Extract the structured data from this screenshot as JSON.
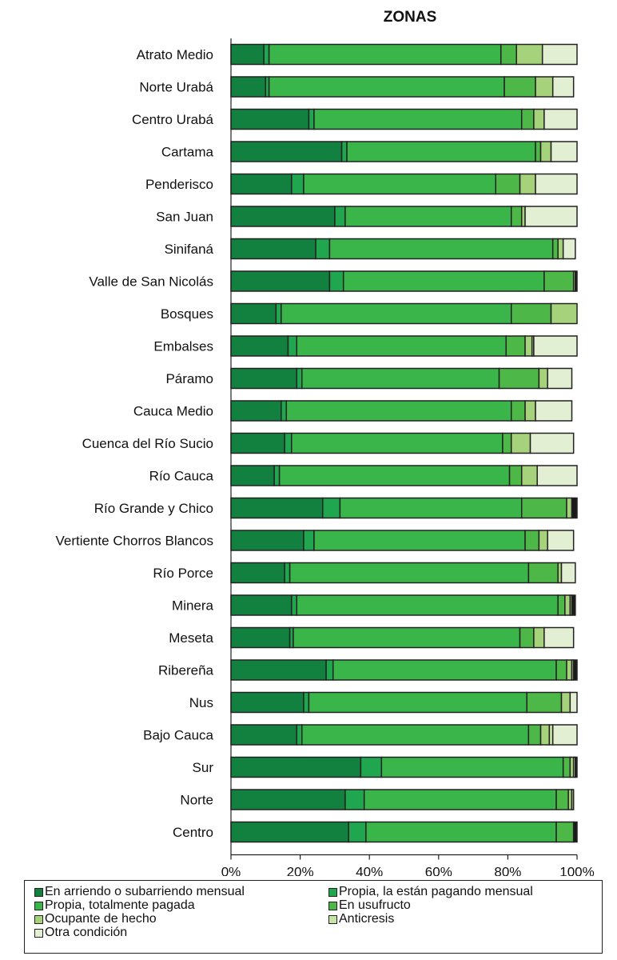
{
  "chart_data": {
    "type": "bar",
    "orientation": "horizontal",
    "stacked": "percent",
    "title": "ZONAS",
    "xlabel": "",
    "ylabel": "",
    "xlim": [
      0,
      100
    ],
    "xticks": [
      "0%",
      "20%",
      "40%",
      "60%",
      "80%",
      "100%"
    ],
    "grid": false,
    "legend_position": "bottom",
    "categories": [
      "Atrato Medio",
      "Norte Urabá",
      "Centro Urabá",
      "Cartama",
      "Penderisco",
      "San Juan",
      "Sinifaná",
      "Valle de San Nicolás",
      "Bosques",
      "Embalses",
      "Páramo",
      "Cauca Medio",
      "Cuenca del Río Sucio",
      "Río Cauca",
      "Río Grande y Chico",
      "Vertiente Chorros Blancos",
      "Río Porce",
      "Minera",
      "Meseta",
      "Ribereña",
      "Nus",
      "Bajo Cauca",
      "Sur",
      "Norte",
      "Centro"
    ],
    "series": [
      {
        "name": "En arriendo o subarriendo mensual",
        "color": "#12813f",
        "values": [
          9.5,
          10,
          22.5,
          32,
          17.5,
          30,
          24.5,
          28.5,
          13,
          16.5,
          19,
          14.5,
          15.5,
          12.5,
          26.5,
          21,
          15.5,
          17.5,
          17,
          27.5,
          21,
          19,
          37.5,
          33,
          34
        ]
      },
      {
        "name": "Propia, la están pagando mensual",
        "color": "#1fa64f",
        "values": [
          1.5,
          1,
          1.5,
          1.5,
          3.5,
          3,
          4,
          4,
          1.5,
          2.5,
          1.5,
          1.5,
          2,
          1.5,
          5,
          3,
          1.5,
          1.5,
          1,
          2,
          1.5,
          1.5,
          6,
          5.5,
          5
        ]
      },
      {
        "name": "Propia, totalmente pagada",
        "color": "#39b54a",
        "values": [
          67,
          68,
          60,
          54.5,
          55.5,
          48,
          64.5,
          58,
          66.5,
          60.5,
          57,
          65,
          61,
          66.5,
          52.5,
          61,
          69,
          75.5,
          65.5,
          64.5,
          63,
          65.5,
          52.5,
          55.5,
          55
        ]
      },
      {
        "name": "En usufructo",
        "color": "#4db848",
        "values": [
          4.5,
          9,
          3.5,
          1.5,
          7,
          3,
          1.5,
          8.5,
          11.5,
          5.5,
          11.5,
          4,
          2.5,
          3.5,
          13,
          4,
          8.5,
          2,
          4,
          3,
          10,
          3.5,
          2,
          3.5,
          5
        ]
      },
      {
        "name": "Ocupante de hecho",
        "color": "#a5d27a",
        "values": [
          7.5,
          5,
          3,
          3,
          4.5,
          1,
          1.5,
          0.5,
          7.5,
          2,
          2.5,
          3,
          5.5,
          4.5,
          1.5,
          2.5,
          1,
          1.5,
          3,
          1.5,
          2.5,
          2.5,
          1,
          1,
          0
        ]
      },
      {
        "name": "Anticresis",
        "color": "#c8e3a7",
        "values": [
          0,
          0,
          0,
          0,
          0,
          0,
          0,
          0,
          0,
          0.5,
          0,
          0,
          0,
          0,
          0,
          0,
          0,
          0.5,
          0,
          0.5,
          0,
          1,
          0.5,
          0.5,
          0
        ]
      },
      {
        "name": "Otra condición",
        "color": "#e2efd3",
        "values": [
          10,
          6,
          9.5,
          7.5,
          12,
          15,
          3.5,
          0,
          0,
          12.5,
          7,
          10.5,
          12.5,
          11.5,
          0,
          7.5,
          4,
          0,
          8.5,
          0,
          2,
          7,
          0,
          0,
          0
        ]
      },
      {
        "name": "",
        "color": "#1a1a1a",
        "values": [
          0,
          0,
          0,
          0,
          0,
          0,
          0,
          0.5,
          0,
          0,
          0,
          0,
          0,
          0,
          1.5,
          0,
          0,
          1,
          0,
          1,
          0,
          0,
          0.5,
          0,
          1
        ]
      }
    ],
    "legend": [
      {
        "label": "En arriendo o subarriendo mensual",
        "color": "#12813f"
      },
      {
        "label": "Propia, la están pagando mensual",
        "color": "#1fa64f"
      },
      {
        "label": "Propia, totalmente pagada",
        "color": "#39b54a"
      },
      {
        "label": "En usufructo",
        "color": "#4db848"
      },
      {
        "label": "Ocupante de hecho",
        "color": "#a5d27a"
      },
      {
        "label": "Anticresis",
        "color": "#c8e3a7"
      },
      {
        "label": "Otra condición",
        "color": "#e2efd3"
      }
    ]
  }
}
